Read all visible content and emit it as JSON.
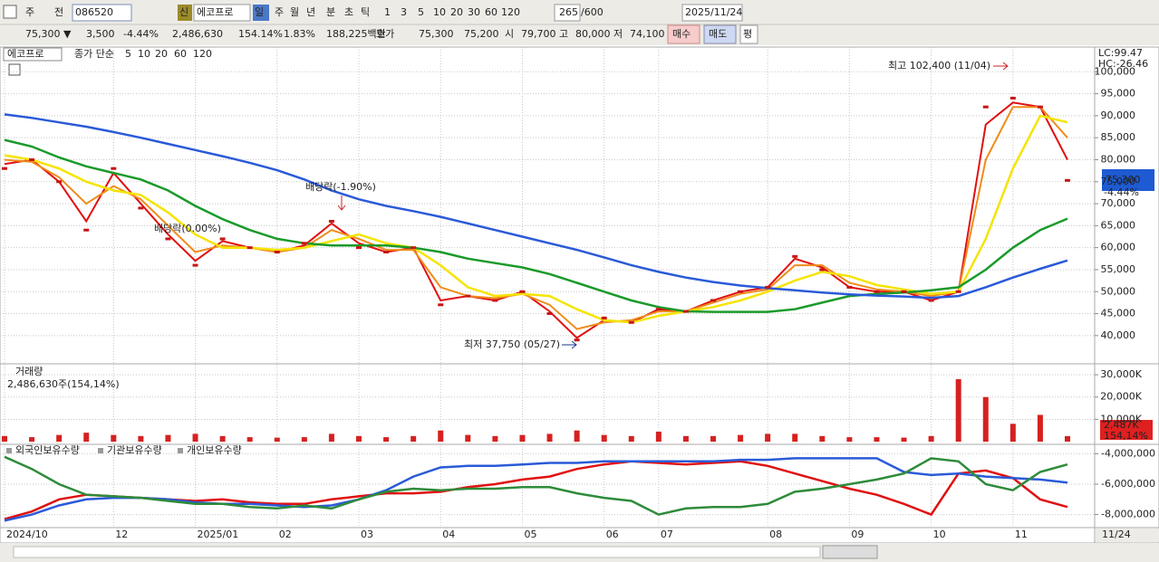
{
  "toolbar": {
    "period_select": "주",
    "prev": "전",
    "code": "086520",
    "new_badge": "신",
    "name": "에코프로",
    "periods": [
      "일",
      "주",
      "월",
      "년",
      "분",
      "초",
      "틱"
    ],
    "intervals": [
      "1",
      "3",
      "5",
      "10",
      "20",
      "30",
      "60",
      "120"
    ],
    "count": "265",
    "max_count": "/600",
    "date": "2025/11/24"
  },
  "quote_bar": {
    "price": "75,300 ▼",
    "change": "3,500",
    "change_pct": "-4.44%",
    "volume": "2,486,630",
    "volume_ratio": "154.14%",
    "turnover": "1.83%",
    "amount": "188,225백만",
    "ask_label": "호가",
    "ask": "75,300",
    "bid": "75,200",
    "open_label": "시",
    "open": "79,700",
    "high_label": "고",
    "high": "80,000",
    "low_label": "저",
    "low": "74,100",
    "buy": "매수",
    "sell": "매도",
    "avg": "평"
  },
  "chart_data": [
    {
      "type": "line",
      "title": "에코프로",
      "legend_prefix": "종가 단순",
      "categories": [
        "2024/10",
        null,
        null,
        null,
        "12",
        null,
        null,
        "2025/01",
        null,
        null,
        "02",
        null,
        null,
        "03",
        null,
        null,
        "04",
        null,
        null,
        "05",
        null,
        null,
        "06",
        null,
        "07",
        null,
        null,
        null,
        "08",
        null,
        null,
        "09",
        null,
        null,
        "10",
        null,
        null,
        "11",
        null,
        null
      ],
      "close": [
        78000,
        80000,
        75000,
        64000,
        78000,
        69000,
        62000,
        56000,
        62000,
        60000,
        59000,
        61000,
        66000,
        60000,
        59000,
        60000,
        47000,
        49000,
        48000,
        50000,
        45000,
        39000,
        44000,
        43000,
        46000,
        45500,
        48000,
        50000,
        51000,
        58000,
        55000,
        51000,
        50000,
        50000,
        48000,
        50000,
        92000,
        94000,
        92000,
        75300
      ],
      "close_color": "#c81414",
      "series": [
        {
          "name": "5",
          "color": "#e01010",
          "values": [
            79000,
            80000,
            75000,
            66000,
            77000,
            70000,
            63000,
            57000,
            61500,
            60000,
            59000,
            60500,
            65500,
            61000,
            59000,
            60000,
            48000,
            49000,
            48000,
            50000,
            45500,
            39500,
            43500,
            43000,
            46000,
            45500,
            48000,
            50000,
            51000,
            57500,
            55500,
            51000,
            50000,
            50000,
            48000,
            50000,
            88000,
            93000,
            92000,
            80000
          ]
        },
        {
          "name": "10",
          "color": "#f08c1a",
          "values": [
            80000,
            79500,
            76000,
            70000,
            74000,
            71000,
            65000,
            59000,
            60500,
            60000,
            59000,
            60000,
            64000,
            62000,
            59500,
            59500,
            51000,
            49000,
            48500,
            49500,
            47000,
            41500,
            43000,
            43500,
            45500,
            45500,
            47500,
            49500,
            50500,
            56000,
            56000,
            52000,
            50500,
            50000,
            49000,
            50000,
            80000,
            92000,
            92000,
            85000
          ]
        },
        {
          "name": "20",
          "color": "#f5e400",
          "values": [
            81000,
            80000,
            78000,
            75000,
            73000,
            72000,
            68000,
            63000,
            60000,
            60000,
            59500,
            60000,
            61500,
            63000,
            61000,
            60000,
            56000,
            51000,
            49000,
            49500,
            49000,
            46000,
            43500,
            43000,
            44500,
            45500,
            46500,
            48000,
            50000,
            52500,
            54500,
            53500,
            51500,
            50500,
            49500,
            50000,
            62000,
            78000,
            90000,
            88500
          ]
        },
        {
          "name": "60",
          "color": "#1a9a2a",
          "values": [
            84500,
            83000,
            80500,
            78500,
            77000,
            75500,
            73000,
            69500,
            66500,
            64000,
            62000,
            61000,
            60500,
            60500,
            60500,
            60000,
            59000,
            57500,
            56500,
            55500,
            54000,
            52000,
            50000,
            48000,
            46500,
            45500,
            45400,
            45400,
            45400,
            46000,
            47500,
            49000,
            49500,
            49800,
            50300,
            51000,
            55000,
            60000,
            64000,
            66600
          ]
        },
        {
          "name": "120",
          "color": "#2a5ad8",
          "values": [
            90300,
            89500,
            88500,
            87500,
            86300,
            85000,
            83600,
            82200,
            80800,
            79300,
            77600,
            75500,
            73000,
            71000,
            69500,
            68300,
            67000,
            65500,
            64000,
            62500,
            61000,
            59500,
            57800,
            56000,
            54500,
            53200,
            52200,
            51400,
            50800,
            50300,
            49800,
            49400,
            49100,
            48900,
            48600,
            49000,
            51000,
            53200,
            55200,
            57100
          ]
        }
      ],
      "ylim": [
        34000,
        105000
      ],
      "yticks": [
        {
          "value": 40000,
          "label": "40,000"
        },
        {
          "value": 45000,
          "label": "45,000"
        },
        {
          "value": 50000,
          "label": "50,000"
        },
        {
          "value": 55000,
          "label": "55,000"
        },
        {
          "value": 60000,
          "label": "60,000"
        },
        {
          "value": 65000,
          "label": "65,000"
        },
        {
          "value": 70000,
          "label": "70,000"
        },
        {
          "value": 75000,
          "label": "75,000"
        },
        {
          "value": 80000,
          "label": "80,000"
        },
        {
          "value": 85000,
          "label": "85,000"
        },
        {
          "value": 90000,
          "label": "90,000"
        },
        {
          "value": 95000,
          "label": "95,000"
        },
        {
          "value": 100000,
          "label": "100,000"
        }
      ],
      "grid": true,
      "annotations": [
        "최고 102,400 (11/04)",
        "최저 37,750 (05/27)",
        "배당락(-1.90%)",
        "배당락(0.00%)"
      ],
      "current_price_label": "75,300",
      "current_change_label": "-4.44%",
      "lc_label": "LC:99.47",
      "hc_label": "HC:-26.46",
      "current_date_label": "11/24"
    },
    {
      "type": "bar",
      "title": "거래량",
      "subtitle": "2,486,630주(154,14%)",
      "color": "#d62020",
      "values": [
        2500,
        2000,
        3000,
        4000,
        3000,
        2500,
        3000,
        3500,
        2500,
        2000,
        1800,
        2000,
        3500,
        2500,
        2000,
        2500,
        5000,
        3000,
        2500,
        3000,
        3500,
        5000,
        3000,
        2500,
        4500,
        2500,
        2500,
        3000,
        3500,
        3500,
        2500,
        2000,
        2000,
        1800,
        2500,
        28000,
        20000,
        8000,
        12000,
        2487
      ],
      "ylim": [
        0,
        33700
      ],
      "yticks": [
        {
          "value": 10000,
          "label": "10,000K"
        },
        {
          "value": 20000,
          "label": "20,000K"
        },
        {
          "value": 30000,
          "label": "30,000K"
        }
      ],
      "grid": true,
      "current_label": "2,487K",
      "current_pct_label": "154,14%"
    },
    {
      "type": "line",
      "series": [
        {
          "name": "외국인보유수량",
          "color": "#e01010",
          "values": [
            -8300000,
            -7800000,
            -7000000,
            -6700000,
            -6800000,
            -6900000,
            -7000000,
            -7100000,
            -7000000,
            -7200000,
            -7300000,
            -7300000,
            -7000000,
            -6800000,
            -6600000,
            -6600000,
            -6500000,
            -6200000,
            -6000000,
            -5700000,
            -5500000,
            -5000000,
            -4700000,
            -4500000,
            -4600000,
            -4700000,
            -4600000,
            -4500000,
            -4800000,
            -5300000,
            -5800000,
            -6300000,
            -6700000,
            -7300000,
            -8000000,
            -5300000,
            -5100000,
            -5600000,
            -7000000,
            -7500000
          ]
        },
        {
          "name": "기관보유수량",
          "color": "#2a5ad8",
          "values": [
            -8400000,
            -8000000,
            -7400000,
            -7000000,
            -6900000,
            -6900000,
            -7000000,
            -7200000,
            -7300000,
            -7300000,
            -7400000,
            -7500000,
            -7400000,
            -7000000,
            -6400000,
            -5500000,
            -4900000,
            -4800000,
            -4800000,
            -4700000,
            -4600000,
            -4600000,
            -4500000,
            -4500000,
            -4500000,
            -4500000,
            -4500000,
            -4400000,
            -4400000,
            -4300000,
            -4300000,
            -4300000,
            -4300000,
            -5200000,
            -5400000,
            -5300000,
            -5500000,
            -5600000,
            -5700000,
            -5900000
          ]
        },
        {
          "name": "개인보유수량",
          "color": "#2e8b3a",
          "values": [
            -4200000,
            -5000000,
            -6000000,
            -6700000,
            -6800000,
            -6900000,
            -7100000,
            -7300000,
            -7300000,
            -7500000,
            -7600000,
            -7400000,
            -7600000,
            -7000000,
            -6500000,
            -6300000,
            -6400000,
            -6300000,
            -6300000,
            -6200000,
            -6200000,
            -6600000,
            -6900000,
            -7100000,
            -8000000,
            -7600000,
            -7500000,
            -7500000,
            -7300000,
            -6500000,
            -6300000,
            -6000000,
            -5700000,
            -5300000,
            -4300000,
            -4500000,
            -6000000,
            -6400000,
            -5200000,
            -4700000
          ]
        }
      ],
      "ylim": [
        -8800000,
        -3500000
      ],
      "yticks": [
        {
          "value": -8000000,
          "label": "-8,000,000"
        },
        {
          "value": -6000000,
          "label": "-6,000,000"
        },
        {
          "value": -4000000,
          "label": "-4,000,000"
        }
      ],
      "grid": true
    }
  ]
}
